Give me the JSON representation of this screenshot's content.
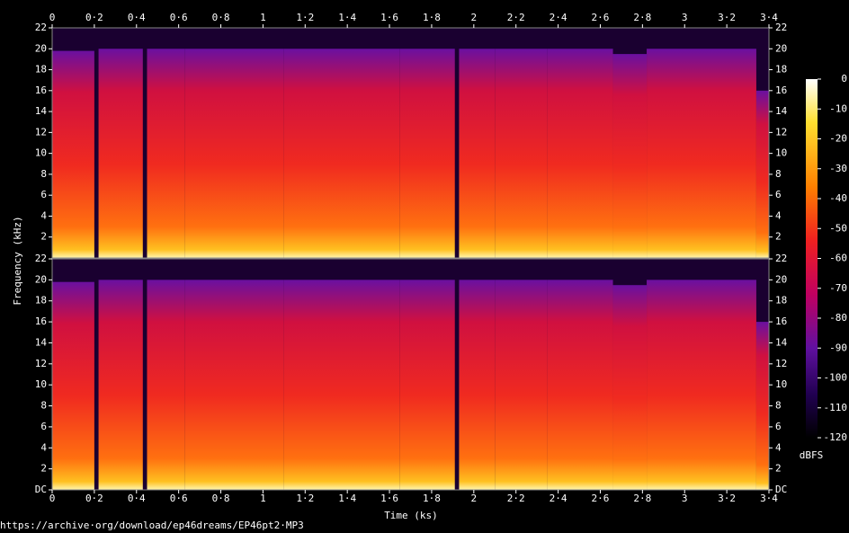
{
  "chart_data": {
    "type": "spectrogram",
    "xlabel": "Time (ks)",
    "ylabel": "Frequency (kHz)",
    "footer": "https://archive·org/download/ep46dreams/EP46pt2·MP3",
    "xlim": [
      0,
      3.4
    ],
    "xticks": [
      0,
      {
        "value": 0.2,
        "label": "0·2"
      },
      {
        "value": 0.4,
        "label": "0·4"
      },
      {
        "value": 0.6,
        "label": "0·6"
      },
      {
        "value": 0.8,
        "label": "0·8"
      },
      1,
      {
        "value": 1.2,
        "label": "1·2"
      },
      {
        "value": 1.4,
        "label": "1·4"
      },
      {
        "value": 1.6,
        "label": "1·6"
      },
      {
        "value": 1.8,
        "label": "1·8"
      },
      2,
      {
        "value": 2.2,
        "label": "2·2"
      },
      {
        "value": 2.4,
        "label": "2·4"
      },
      {
        "value": 2.6,
        "label": "2·6"
      },
      {
        "value": 2.8,
        "label": "2·8"
      },
      3,
      {
        "value": 3.2,
        "label": "3·2"
      },
      {
        "value": 3.4,
        "label": "3·4"
      }
    ],
    "channels": [
      {
        "ylim": [
          0,
          22
        ],
        "yticks": [
          2,
          4,
          6,
          8,
          10,
          12,
          14,
          16,
          18,
          20,
          22
        ]
      },
      {
        "ylim": [
          0,
          22
        ],
        "yticks": [
          {
            "value": 0,
            "label": "DC"
          },
          2,
          4,
          6,
          8,
          10,
          12,
          14,
          16,
          18,
          20,
          22
        ]
      }
    ],
    "segments": [
      {
        "start": 0,
        "end": 0.2,
        "cutoff": 19.8
      },
      {
        "start": 0.22,
        "end": 0.43,
        "cutoff": 20
      },
      {
        "start": 0.45,
        "end": 0.63,
        "cutoff": 20
      },
      {
        "start": 0.63,
        "end": 1.1,
        "cutoff": 20
      },
      {
        "start": 1.1,
        "end": 1.65,
        "cutoff": 20
      },
      {
        "start": 1.65,
        "end": 1.91,
        "cutoff": 20
      },
      {
        "start": 1.93,
        "end": 2.1,
        "cutoff": 20
      },
      {
        "start": 2.1,
        "end": 2.35,
        "cutoff": 20
      },
      {
        "start": 2.35,
        "end": 2.66,
        "cutoff": 20
      },
      {
        "start": 2.66,
        "end": 2.82,
        "cutoff": 19.5
      },
      {
        "start": 2.82,
        "end": 3.34,
        "cutoff": 20
      },
      {
        "start": 3.34,
        "end": 3.4,
        "cutoff": 16
      }
    ],
    "colorbar": {
      "label": "dBFS",
      "lim": [
        -120,
        0
      ],
      "ticks": [
        0,
        -10,
        -20,
        -30,
        -40,
        -50,
        -60,
        -70,
        -80,
        -90,
        -100,
        -110,
        -120
      ]
    }
  }
}
